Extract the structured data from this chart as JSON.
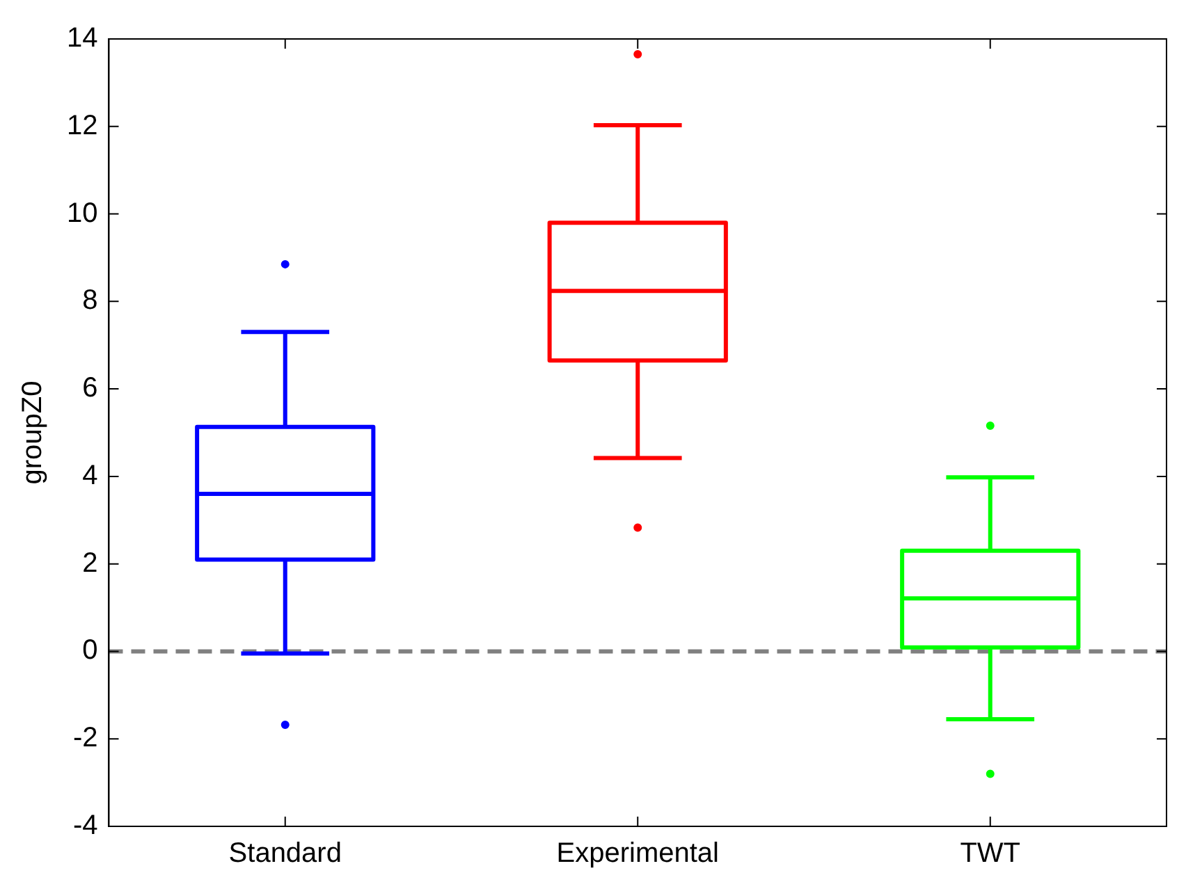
{
  "chart_data": {
    "type": "box",
    "ylabel": "groupZ0",
    "categories": [
      "Standard",
      "Experimental",
      "TWT"
    ],
    "colors": [
      "#0000ff",
      "#ff0000",
      "#00ff00"
    ],
    "boxes": [
      {
        "low": -0.05,
        "q1": 2.1,
        "median": 3.6,
        "q3": 5.13,
        "high": 7.3,
        "outliers": [
          8.85,
          -1.68
        ]
      },
      {
        "low": 4.42,
        "q1": 6.65,
        "median": 8.24,
        "q3": 9.8,
        "high": 12.03,
        "outliers": [
          13.65,
          2.83
        ]
      },
      {
        "low": -1.55,
        "q1": 0.09,
        "median": 1.21,
        "q3": 2.3,
        "high": 3.98,
        "outliers": [
          5.16,
          -2.8
        ]
      }
    ],
    "ylim": [
      -4,
      14
    ],
    "yticks": [
      -4,
      -2,
      0,
      2,
      4,
      6,
      8,
      10,
      12,
      14
    ],
    "ref_lines": [
      {
        "axis": "y",
        "value": 0,
        "color": "#808080",
        "line_style": "dashed"
      }
    ],
    "grid": false,
    "legend": false
  }
}
